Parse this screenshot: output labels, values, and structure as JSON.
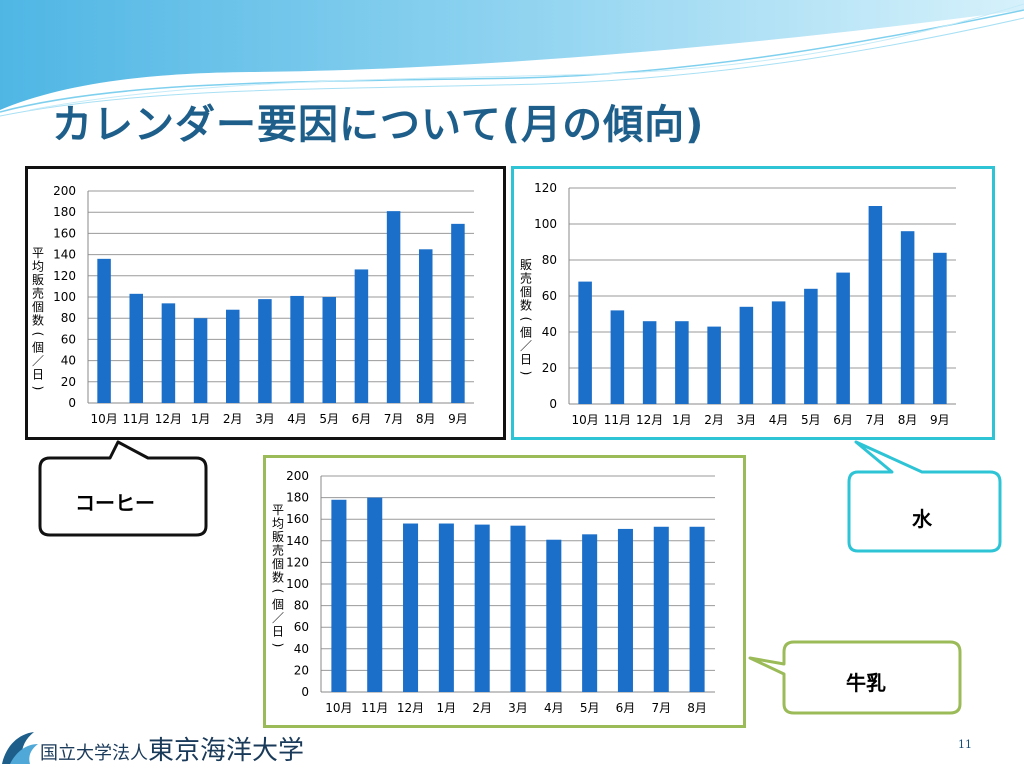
{
  "slide": {
    "title": "カレンダー要因について(月の傾向)",
    "page_number": "11"
  },
  "footer": {
    "prefix": "国立大学法人",
    "name": "東京海洋大学"
  },
  "colors": {
    "bar": "#1b6fc9",
    "title": "#1d5f8a",
    "coffee_border": "#111111",
    "water_border": "#2ec4d6",
    "milk_border": "#9bbb59"
  },
  "chart_data": [
    {
      "id": "coffee",
      "label": "コーヒー",
      "type": "bar",
      "categories": [
        "10月",
        "11月",
        "12月",
        "1月",
        "2月",
        "3月",
        "4月",
        "5月",
        "6月",
        "7月",
        "8月",
        "9月"
      ],
      "values": [
        136,
        103,
        94,
        80,
        88,
        98,
        101,
        100,
        126,
        181,
        145,
        169
      ],
      "ylabel": "平均販売個数(個／日)",
      "ylim": [
        0,
        200
      ],
      "ytick_step": 20,
      "grid": true
    },
    {
      "id": "water",
      "label": "水",
      "type": "bar",
      "categories": [
        "10月",
        "11月",
        "12月",
        "1月",
        "2月",
        "3月",
        "4月",
        "5月",
        "6月",
        "7月",
        "8月",
        "9月"
      ],
      "values": [
        68,
        52,
        46,
        46,
        43,
        54,
        57,
        64,
        73,
        110,
        96,
        84
      ],
      "ylabel": "販売個数(個／日)",
      "ylim": [
        0,
        120
      ],
      "ytick_step": 20,
      "grid": true
    },
    {
      "id": "milk",
      "label": "牛乳",
      "type": "bar",
      "categories": [
        "10月",
        "11月",
        "12月",
        "1月",
        "2月",
        "3月",
        "4月",
        "5月",
        "6月",
        "7月",
        "8月"
      ],
      "values": [
        178,
        180,
        156,
        156,
        155,
        154,
        141,
        146,
        151,
        153,
        153
      ],
      "ylabel": "平均販売個数(個／日)",
      "ylim": [
        0,
        200
      ],
      "ytick_step": 20,
      "grid": true
    }
  ]
}
